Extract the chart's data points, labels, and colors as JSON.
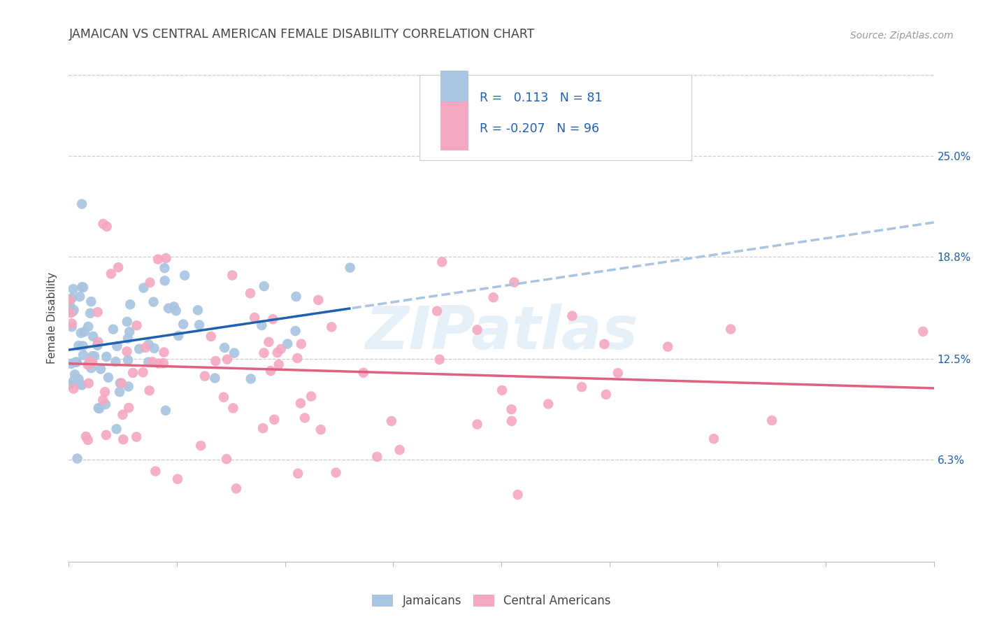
{
  "title": "JAMAICAN VS CENTRAL AMERICAN FEMALE DISABILITY CORRELATION CHART",
  "source": "Source: ZipAtlas.com",
  "ylabel": "Female Disability",
  "watermark": "ZIPatlas",
  "xlim": [
    0.0,
    0.8
  ],
  "ylim": [
    0.0,
    0.3
  ],
  "ytick_positions": [
    0.063,
    0.125,
    0.188,
    0.25
  ],
  "ytick_labels": [
    "6.3%",
    "12.5%",
    "18.8%",
    "25.0%"
  ],
  "series1_name": "Jamaicans",
  "series2_name": "Central Americans",
  "R1": 0.113,
  "N1": 81,
  "R2": -0.207,
  "N2": 96,
  "color1": "#a8c4e0",
  "color2": "#f4a8c0",
  "line1_color": "#2060b0",
  "line2_color": "#e06080",
  "dashed_line_color": "#a8c4e0",
  "background_color": "#ffffff",
  "grid_color": "#cccccc",
  "title_color": "#444444",
  "axis_label_color": "#2060b0",
  "source_color": "#999999",
  "seed": 42
}
